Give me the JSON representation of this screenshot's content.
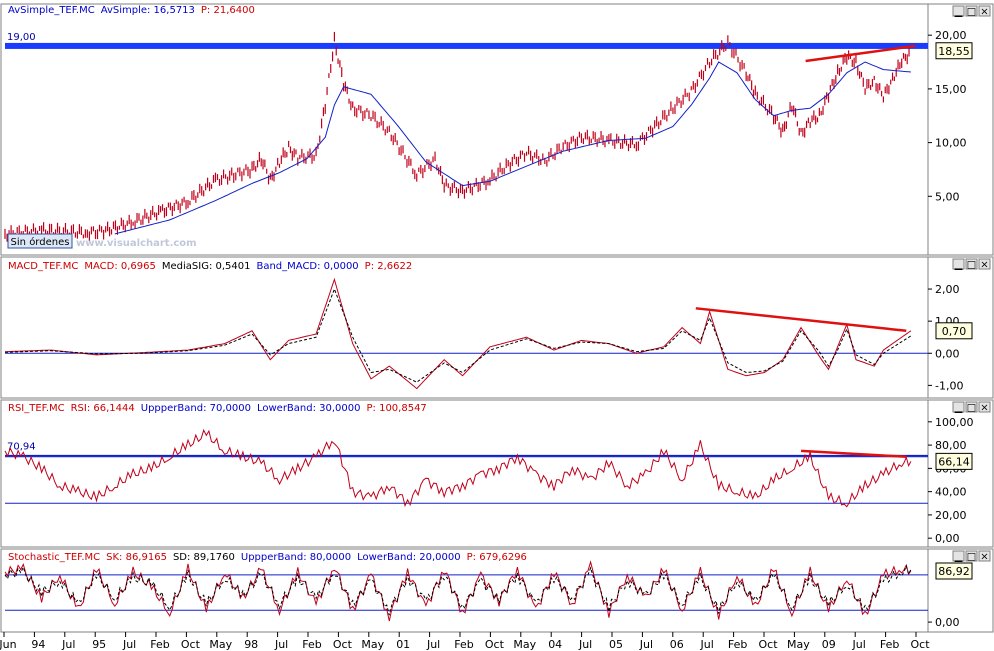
{
  "colors": {
    "price": "#c0001a",
    "avg": "#1020c8",
    "blue_line": "#1a3cff",
    "red_trend": "#e01010",
    "panel_border": "#808080"
  },
  "panels": [
    {
      "id": "price",
      "header": [
        {
          "text": "AvSimple_TEF.MC",
          "color": "#0000cc"
        },
        {
          "text": "AvSimple: 16,5713",
          "color": "#0000cc"
        },
        {
          "text": "P: 21,6400",
          "color": "#cc0000"
        }
      ],
      "ticks": [
        "20,00",
        "15,00",
        "10,00",
        "5,00"
      ],
      "tick_values": [
        20,
        15,
        10,
        5
      ],
      "value_box": "18,55",
      "level_label": "19,00",
      "badge": "Sin órdenes",
      "watermark": "www.visualchart.com"
    },
    {
      "id": "macd",
      "header": [
        {
          "text": "MACD_TEF.MC",
          "color": "#cc0000"
        },
        {
          "text": "MACD: 0,6965",
          "color": "#cc0000"
        },
        {
          "text": "MediaSIG: 0,5401",
          "color": "#000000"
        },
        {
          "text": "Band_MACD: 0,0000",
          "color": "#0000cc"
        },
        {
          "text": "P: 2,6622",
          "color": "#cc0000"
        }
      ],
      "ticks": [
        "2,00",
        "1,00",
        "0,00",
        "-1,00"
      ],
      "tick_values": [
        2,
        1,
        0,
        -1
      ],
      "value_box": "0,70"
    },
    {
      "id": "rsi",
      "header": [
        {
          "text": "RSI_TEF.MC",
          "color": "#cc0000"
        },
        {
          "text": "RSI: 66,1444",
          "color": "#cc0000"
        },
        {
          "text": "UppperBand: 70,0000",
          "color": "#0000cc"
        },
        {
          "text": "LowerBand: 30,0000",
          "color": "#0000cc"
        },
        {
          "text": "P: 100,8547",
          "color": "#cc0000"
        }
      ],
      "ticks": [
        "100,00",
        "80,00",
        "60,00",
        "40,00",
        "20,00",
        "0,00"
      ],
      "tick_values": [
        100,
        80,
        60,
        40,
        20,
        0
      ],
      "value_box": "66,14",
      "level_label": "70,94"
    },
    {
      "id": "stoch",
      "header": [
        {
          "text": "Stochastic_TEF.MC",
          "color": "#cc0000"
        },
        {
          "text": "SK: 86,9165",
          "color": "#cc0000"
        },
        {
          "text": "SD: 89,1760",
          "color": "#000000"
        },
        {
          "text": "UppperBand: 80,0000",
          "color": "#0000cc"
        },
        {
          "text": "LowerBand: 20,0000",
          "color": "#0000cc"
        },
        {
          "text": "P: 679,6296",
          "color": "#cc0000"
        }
      ],
      "ticks": [
        "0,00"
      ],
      "tick_values": [
        0
      ],
      "value_box": "86,92"
    }
  ],
  "x_axis": [
    "Jun",
    "94",
    "Jul",
    "95",
    "Jul",
    "Feb",
    "Oct",
    "May",
    "98",
    "Jul",
    "Feb",
    "Oct",
    "May",
    "01",
    "Jul",
    "Feb",
    "Oct",
    "May",
    "04",
    "Jul",
    "05",
    "Jul",
    "06",
    "Jul",
    "Feb",
    "Oct",
    "May",
    "09",
    "Jul",
    "Feb",
    "Oct"
  ],
  "chart_data": [
    {
      "type": "line",
      "series": [
        {
          "name": "AvSimple_TEF.MC",
          "style": "bars",
          "color": "#c0001a",
          "x": [
            0.0,
            0.04,
            0.09,
            0.11,
            0.14,
            0.17,
            0.2,
            0.23,
            0.25,
            0.27,
            0.28,
            0.29,
            0.3,
            0.31,
            0.32,
            0.34,
            0.35,
            0.36,
            0.37,
            0.38,
            0.4,
            0.42,
            0.45,
            0.47,
            0.48,
            0.5,
            0.53,
            0.55,
            0.57,
            0.59,
            0.61,
            0.63,
            0.66,
            0.69,
            0.71,
            0.73,
            0.75,
            0.77,
            0.79,
            0.81,
            0.82,
            0.84,
            0.85,
            0.86,
            0.87,
            0.88,
            0.89,
            0.9,
            0.91,
            0.92,
            0.93,
            0.94,
            0.95,
            0.96,
            0.97,
            0.98,
            0.99
          ],
          "y": [
            1.5,
            1.8,
            1.6,
            1.8,
            2.6,
            3.6,
            4.5,
            6.5,
            7.0,
            7.5,
            8.5,
            6.5,
            8.2,
            9.5,
            8.6,
            8.8,
            13.5,
            19.5,
            15.5,
            13.2,
            12.5,
            11.0,
            7.0,
            8.5,
            6.0,
            5.5,
            6.5,
            8.0,
            9.0,
            8.3,
            9.6,
            10.5,
            10.2,
            9.8,
            11.5,
            13.2,
            14.8,
            17.5,
            19.3,
            16.5,
            14.5,
            12.5,
            11.0,
            13.5,
            10.8,
            12.0,
            12.5,
            14.5,
            16.5,
            18.0,
            17.5,
            15.0,
            15.8,
            14.2,
            16.0,
            17.5,
            18.55
          ]
        },
        {
          "name": "AvSimple: 16,5713",
          "style": "line",
          "color": "#1020c8",
          "x": [
            0.12,
            0.18,
            0.23,
            0.27,
            0.3,
            0.33,
            0.35,
            0.36,
            0.37,
            0.4,
            0.43,
            0.46,
            0.5,
            0.53,
            0.57,
            0.61,
            0.66,
            0.7,
            0.73,
            0.75,
            0.77,
            0.78,
            0.8,
            0.82,
            0.84,
            0.86,
            0.88,
            0.9,
            0.92,
            0.94,
            0.96,
            0.99
          ],
          "y": [
            1.5,
            2.8,
            4.6,
            6.2,
            7.2,
            8.5,
            10.5,
            13.5,
            15.2,
            14.5,
            11.5,
            8.2,
            6.0,
            6.4,
            7.8,
            9.2,
            10.2,
            10.4,
            11.5,
            13.5,
            16.0,
            17.5,
            16.5,
            14.0,
            12.5,
            13.0,
            13.2,
            14.5,
            16.5,
            17.5,
            16.8,
            16.57
          ]
        }
      ],
      "yticks": [
        20,
        15,
        10,
        5
      ],
      "ylim": [
        0,
        21.6
      ],
      "hline": 19.0,
      "trendline": {
        "x": [
          0.875,
          0.995
        ],
        "y": [
          17.6,
          19.0
        ]
      }
    },
    {
      "type": "line",
      "series": [
        {
          "name": "MACD: 0,6965",
          "style": "line",
          "color": "#c0001a",
          "x": [
            0.0,
            0.05,
            0.1,
            0.15,
            0.2,
            0.24,
            0.27,
            0.29,
            0.31,
            0.34,
            0.36,
            0.38,
            0.4,
            0.42,
            0.45,
            0.48,
            0.5,
            0.53,
            0.57,
            0.6,
            0.63,
            0.66,
            0.69,
            0.72,
            0.74,
            0.76,
            0.77,
            0.79,
            0.81,
            0.83,
            0.85,
            0.87,
            0.89,
            0.9,
            0.91,
            0.92,
            0.93,
            0.95,
            0.96,
            0.99
          ],
          "y": [
            0.05,
            0.1,
            -0.05,
            0.02,
            0.1,
            0.3,
            0.7,
            -0.2,
            0.4,
            0.6,
            2.3,
            0.3,
            -0.8,
            -0.4,
            -1.1,
            -0.2,
            -0.7,
            0.2,
            0.5,
            0.1,
            0.4,
            0.3,
            0.0,
            0.2,
            0.8,
            0.3,
            1.3,
            -0.5,
            -0.7,
            -0.6,
            -0.2,
            0.8,
            -0.1,
            -0.5,
            0.2,
            0.9,
            -0.2,
            -0.4,
            0.1,
            0.7
          ]
        },
        {
          "name": "MediaSIG: 0,5401",
          "style": "dashed",
          "color": "#000000",
          "x": [
            0.0,
            0.05,
            0.1,
            0.15,
            0.2,
            0.24,
            0.27,
            0.29,
            0.31,
            0.34,
            0.36,
            0.38,
            0.4,
            0.42,
            0.45,
            0.48,
            0.5,
            0.53,
            0.57,
            0.6,
            0.63,
            0.66,
            0.69,
            0.72,
            0.74,
            0.76,
            0.77,
            0.79,
            0.81,
            0.83,
            0.85,
            0.87,
            0.89,
            0.9,
            0.91,
            0.92,
            0.93,
            0.95,
            0.96,
            0.99
          ],
          "y": [
            0.03,
            0.08,
            -0.02,
            0.0,
            0.08,
            0.25,
            0.6,
            -0.05,
            0.3,
            0.5,
            2.0,
            0.5,
            -0.6,
            -0.5,
            -0.9,
            -0.3,
            -0.6,
            0.1,
            0.45,
            0.15,
            0.35,
            0.3,
            0.05,
            0.15,
            0.7,
            0.4,
            1.1,
            -0.3,
            -0.6,
            -0.55,
            -0.25,
            0.7,
            0.05,
            -0.4,
            0.1,
            0.75,
            -0.05,
            -0.35,
            0.0,
            0.54
          ]
        }
      ],
      "yticks": [
        2,
        1,
        0,
        -1
      ],
      "ylim": [
        -1.3,
        2.5
      ],
      "hline": 0,
      "trendline": {
        "x": [
          0.755,
          0.985
        ],
        "y": [
          1.4,
          0.7
        ]
      }
    },
    {
      "type": "line",
      "series": [
        {
          "name": "RSI: 66,1444",
          "style": "line",
          "color": "#c0001a",
          "x": [
            0.0,
            0.02,
            0.04,
            0.06,
            0.08,
            0.1,
            0.12,
            0.14,
            0.16,
            0.18,
            0.2,
            0.22,
            0.24,
            0.26,
            0.28,
            0.3,
            0.32,
            0.34,
            0.36,
            0.38,
            0.4,
            0.42,
            0.44,
            0.46,
            0.48,
            0.5,
            0.52,
            0.54,
            0.56,
            0.58,
            0.6,
            0.62,
            0.64,
            0.66,
            0.68,
            0.7,
            0.72,
            0.74,
            0.76,
            0.78,
            0.8,
            0.82,
            0.84,
            0.86,
            0.88,
            0.9,
            0.92,
            0.94,
            0.96,
            0.98,
            0.99
          ],
          "y": [
            75,
            70,
            60,
            45,
            40,
            35,
            45,
            55,
            60,
            70,
            80,
            90,
            75,
            70,
            65,
            50,
            60,
            70,
            85,
            40,
            35,
            45,
            30,
            50,
            40,
            45,
            55,
            60,
            70,
            55,
            45,
            60,
            50,
            65,
            45,
            55,
            75,
            50,
            80,
            45,
            40,
            35,
            50,
            60,
            70,
            35,
            30,
            45,
            55,
            65,
            66
          ]
        }
      ],
      "yticks": [
        100,
        80,
        60,
        40,
        20,
        0
      ],
      "ylim": [
        -5,
        105
      ],
      "bands": [
        70,
        30
      ],
      "hline": 70.94,
      "trendline": {
        "x": [
          0.87,
          0.985
        ],
        "y": [
          75,
          70
        ]
      }
    },
    {
      "type": "line",
      "series": [
        {
          "name": "SK: 86,9165",
          "style": "line",
          "color": "#c0001a",
          "x": [
            0.0,
            0.02,
            0.04,
            0.06,
            0.08,
            0.1,
            0.12,
            0.14,
            0.16,
            0.18,
            0.2,
            0.22,
            0.24,
            0.26,
            0.28,
            0.3,
            0.32,
            0.34,
            0.36,
            0.38,
            0.4,
            0.42,
            0.44,
            0.46,
            0.48,
            0.5,
            0.52,
            0.54,
            0.56,
            0.58,
            0.6,
            0.62,
            0.64,
            0.66,
            0.68,
            0.7,
            0.72,
            0.74,
            0.76,
            0.78,
            0.8,
            0.82,
            0.84,
            0.86,
            0.88,
            0.9,
            0.92,
            0.94,
            0.96,
            0.98,
            0.99
          ],
          "y": [
            85,
            90,
            40,
            80,
            20,
            90,
            30,
            85,
            60,
            15,
            90,
            20,
            85,
            40,
            90,
            20,
            85,
            30,
            95,
            20,
            80,
            10,
            85,
            25,
            90,
            15,
            80,
            35,
            90,
            20,
            85,
            30,
            95,
            15,
            80,
            40,
            90,
            20,
            85,
            10,
            80,
            25,
            90,
            15,
            85,
            20,
            75,
            10,
            80,
            90,
            87
          ]
        },
        {
          "name": "SD: 89,1760",
          "style": "dashed",
          "color": "#000000",
          "x": [
            0.0,
            0.02,
            0.04,
            0.06,
            0.08,
            0.1,
            0.12,
            0.14,
            0.16,
            0.18,
            0.2,
            0.22,
            0.24,
            0.26,
            0.28,
            0.3,
            0.32,
            0.34,
            0.36,
            0.38,
            0.4,
            0.42,
            0.44,
            0.46,
            0.48,
            0.5,
            0.52,
            0.54,
            0.56,
            0.58,
            0.6,
            0.62,
            0.64,
            0.66,
            0.68,
            0.7,
            0.72,
            0.74,
            0.76,
            0.78,
            0.8,
            0.82,
            0.84,
            0.86,
            0.88,
            0.9,
            0.92,
            0.94,
            0.96,
            0.98,
            0.99
          ],
          "y": [
            80,
            85,
            50,
            70,
            30,
            80,
            40,
            75,
            65,
            25,
            80,
            30,
            75,
            45,
            80,
            30,
            75,
            40,
            85,
            30,
            70,
            20,
            75,
            35,
            80,
            25,
            70,
            40,
            80,
            30,
            75,
            40,
            85,
            25,
            70,
            45,
            80,
            30,
            75,
            20,
            70,
            35,
            80,
            25,
            75,
            30,
            65,
            20,
            70,
            85,
            89
          ]
        }
      ],
      "yticks": [
        0
      ],
      "ylim": [
        -10,
        100
      ],
      "bands": [
        80,
        20
      ]
    }
  ]
}
